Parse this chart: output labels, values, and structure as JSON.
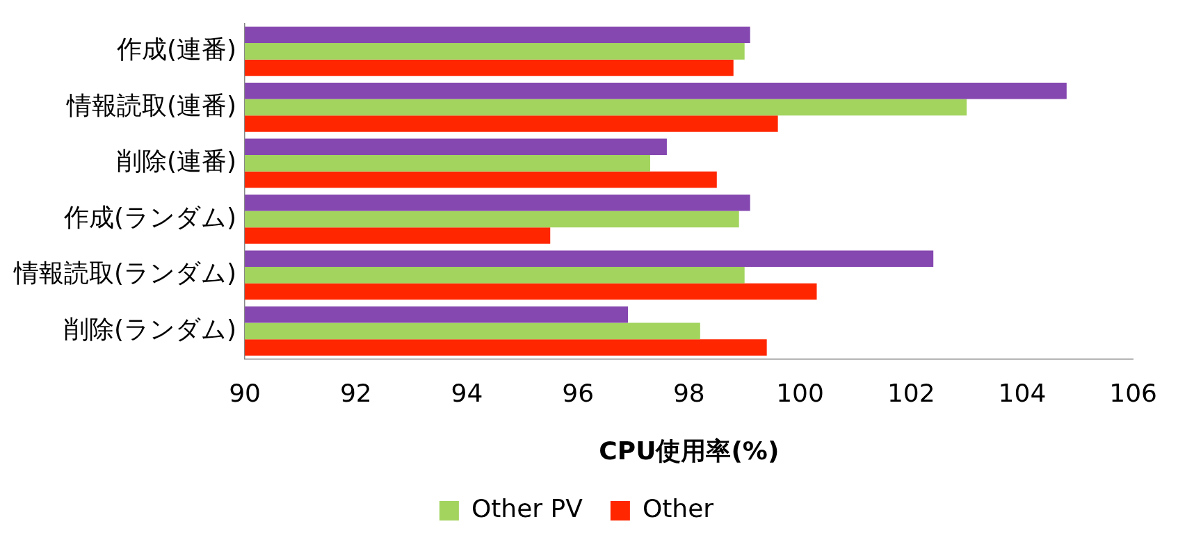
{
  "chart_data": {
    "type": "bar",
    "orientation": "horizontal",
    "xlabel": "CPU使用率(%)",
    "categories": [
      "作成(連番)",
      "情報読取(連番)",
      "削除(連番)",
      "作成(ランダム)",
      "情報読取(ランダム)",
      "削除(ランダム)"
    ],
    "series": [
      {
        "color": "#8547b0",
        "values": [
          99.1,
          104.8,
          97.6,
          99.1,
          102.4,
          96.9
        ]
      },
      {
        "name": "Other PV",
        "color": "#a2d45e",
        "values": [
          99.0,
          103.0,
          97.3,
          98.9,
          99.0,
          98.2
        ]
      },
      {
        "name": "Other",
        "color": "#ff2600",
        "values": [
          98.8,
          99.6,
          98.5,
          95.5,
          100.3,
          99.4
        ]
      }
    ],
    "xlim": [
      90,
      106
    ],
    "xticks": [
      90,
      92,
      94,
      96,
      98,
      100,
      102,
      104,
      106
    ],
    "grid": false,
    "legend": "bottom"
  }
}
